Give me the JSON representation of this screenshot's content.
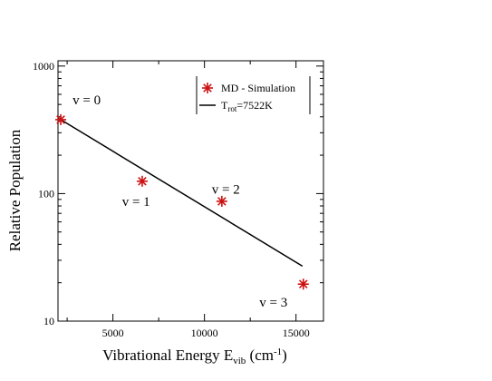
{
  "chart_data": {
    "type": "scatter",
    "title": "",
    "xlabel": "Vibrational Energy E",
    "xlabel_sub": "vib",
    "xlabel_unit_open": " (cm",
    "xlabel_unit_sup": "-1",
    "xlabel_unit_close": ")",
    "ylabel": "Relative Population",
    "xlim": [
      2000,
      16500
    ],
    "ylim": [
      10,
      1100
    ],
    "yscale": "log",
    "grid": false,
    "x_ticks": [
      5000,
      10000,
      15000
    ],
    "x_tick_labels": [
      "5000",
      "10000",
      "15000"
    ],
    "y_ticks": [
      10,
      100,
      1000
    ],
    "y_tick_labels": [
      "10",
      "100",
      "1000"
    ],
    "legend_position": "top-right",
    "series": [
      {
        "name": "MD - Simulation",
        "kind": "scatter",
        "marker": "asterisk",
        "color": "#cc1111",
        "x": [
          2150,
          6600,
          10950,
          15400
        ],
        "y": [
          380,
          125,
          87,
          19.5
        ]
      },
      {
        "name_main": "T",
        "name_sub": "rot",
        "name_rest": "=7522K",
        "kind": "line",
        "color": "#000000",
        "x": [
          2150,
          15350
        ],
        "y": [
          380,
          27
        ]
      }
    ],
    "annotations": [
      {
        "text": "v = 0",
        "x": 2800,
        "y": 500
      },
      {
        "text": "v = 1",
        "x": 5500,
        "y": 80
      },
      {
        "text": "v = 2",
        "x": 10400,
        "y": 100
      },
      {
        "text": "v = 3",
        "x": 13000,
        "y": 13
      }
    ]
  }
}
